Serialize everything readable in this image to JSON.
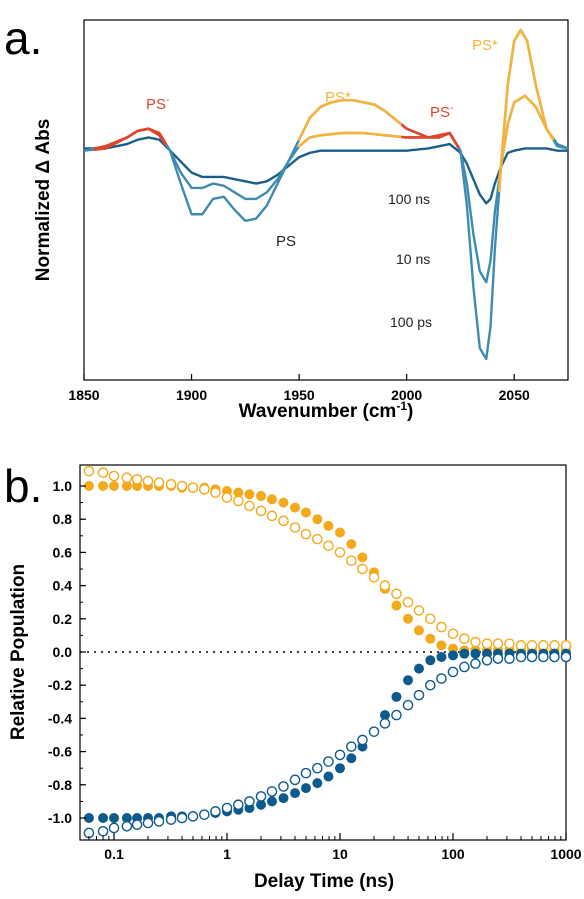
{
  "colors": {
    "ps": "#3f8bb0",
    "ps_dark": "#1a5f8a",
    "ps_star": "#f3b43c",
    "ps_minus": "#e0452c",
    "blue_marker": "#0d5a8c",
    "orange_marker": "#f4a91d"
  },
  "chart_data": [
    {
      "panel": "a.",
      "type": "line",
      "title": "",
      "xlabel_main": "Wavenumber (cm",
      "xlabel_sup": "-1",
      "xlabel_end": ")",
      "ylabel": "Normalized Δ Abs",
      "xlim": [
        1850,
        2075
      ],
      "ylim": [
        -1.0,
        0.55
      ],
      "xticks": [
        1850,
        1900,
        1950,
        2000,
        2050
      ],
      "delay_labels": [
        "100 ns",
        "10 ns",
        "100 ps"
      ],
      "species_labels": {
        "ps": "PS",
        "ps_minus_base": "PS",
        "ps_minus_sup": "-",
        "ps_star": "PS*"
      },
      "series": [
        {
          "name": "100 ns",
          "x": [
            1850,
            1860,
            1870,
            1875,
            1880,
            1885,
            1890,
            1895,
            1900,
            1905,
            1910,
            1915,
            1920,
            1925,
            1930,
            1935,
            1940,
            1945,
            1950,
            1955,
            1960,
            1970,
            1980,
            1990,
            2000,
            2010,
            2015,
            2020,
            2025,
            2028,
            2031,
            2034,
            2037,
            2039,
            2041,
            2044,
            2047,
            2050,
            2055,
            2060,
            2065,
            2070,
            2075
          ],
          "y": [
            0.01,
            0.01,
            0.03,
            0.05,
            0.06,
            0.05,
            0.0,
            -0.05,
            -0.1,
            -0.12,
            -0.12,
            -0.12,
            -0.13,
            -0.14,
            -0.15,
            -0.14,
            -0.11,
            -0.07,
            -0.03,
            -0.01,
            0.0,
            0.0,
            0.0,
            0.0,
            0.0,
            0.01,
            0.02,
            0.03,
            -0.01,
            -0.06,
            -0.13,
            -0.2,
            -0.24,
            -0.22,
            -0.15,
            -0.07,
            -0.01,
            0.0,
            0.01,
            0.01,
            0.01,
            0.0,
            0.0
          ]
        },
        {
          "name": "10 ns",
          "x": [
            1850,
            1860,
            1870,
            1875,
            1880,
            1885,
            1890,
            1895,
            1900,
            1905,
            1910,
            1915,
            1920,
            1925,
            1930,
            1935,
            1940,
            1945,
            1950,
            1955,
            1960,
            1970,
            1980,
            1990,
            2000,
            2010,
            2015,
            2020,
            2025,
            2028,
            2031,
            2034,
            2037,
            2039,
            2041,
            2044,
            2047,
            2050,
            2055,
            2060,
            2065,
            2070,
            2075
          ],
          "y": [
            0.0,
            0.02,
            0.06,
            0.09,
            0.1,
            0.07,
            0.0,
            -0.1,
            -0.17,
            -0.17,
            -0.15,
            -0.16,
            -0.19,
            -0.22,
            -0.22,
            -0.19,
            -0.13,
            -0.05,
            0.02,
            0.06,
            0.07,
            0.08,
            0.08,
            0.07,
            0.06,
            0.06,
            0.07,
            0.08,
            0.0,
            -0.15,
            -0.38,
            -0.55,
            -0.6,
            -0.5,
            -0.28,
            -0.06,
            0.12,
            0.22,
            0.25,
            0.2,
            0.1,
            0.03,
            0.01
          ]
        },
        {
          "name": "100 ps",
          "x": [
            1850,
            1860,
            1870,
            1875,
            1880,
            1885,
            1890,
            1895,
            1900,
            1905,
            1910,
            1915,
            1920,
            1925,
            1930,
            1935,
            1940,
            1945,
            1950,
            1955,
            1960,
            1965,
            1970,
            1975,
            1980,
            1985,
            1990,
            1995,
            2000,
            2005,
            2010,
            2015,
            2020,
            2025,
            2028,
            2031,
            2034,
            2037,
            2039,
            2041,
            2044,
            2047,
            2050,
            2053,
            2056,
            2060,
            2065,
            2070,
            2075
          ],
          "y": [
            0.0,
            0.01,
            0.06,
            0.09,
            0.1,
            0.08,
            0.0,
            -0.15,
            -0.29,
            -0.29,
            -0.22,
            -0.21,
            -0.27,
            -0.32,
            -0.31,
            -0.25,
            -0.15,
            -0.05,
            0.05,
            0.15,
            0.2,
            0.22,
            0.23,
            0.23,
            0.22,
            0.21,
            0.18,
            0.14,
            0.1,
            0.08,
            0.06,
            0.06,
            0.08,
            0.0,
            -0.25,
            -0.62,
            -0.9,
            -0.95,
            -0.8,
            -0.45,
            -0.05,
            0.3,
            0.5,
            0.55,
            0.5,
            0.3,
            0.1,
            0.02,
            0.01
          ]
        }
      ],
      "species_regions": [
        {
          "species": "PS-",
          "x_from": 1855,
          "x_to": 1888
        },
        {
          "species": "PS*",
          "x_from": 1950,
          "x_to": 1998
        },
        {
          "species": "PS-",
          "x_from": 1998,
          "x_to": 2024
        },
        {
          "species": "PS*",
          "x_from": 2043,
          "x_to": 2068
        }
      ]
    },
    {
      "panel": "b.",
      "type": "scatter",
      "title": "",
      "xlabel": "Delay Time (ns)",
      "ylabel": "Relative Population",
      "xscale": "log",
      "xlim": [
        0.05,
        1000
      ],
      "ylim": [
        -1.1,
        1.1
      ],
      "xticks": [
        0.1,
        1,
        10,
        100,
        1000
      ],
      "xtick_labels": [
        "0.1",
        "1",
        "10",
        "100",
        "1000"
      ],
      "yticks": [
        1.0,
        0.8,
        0.6,
        0.4,
        0.2,
        0.0,
        -0.2,
        -0.4,
        -0.6,
        -0.8,
        -1.0
      ],
      "ytick_labels": [
        "1.0",
        "0.8",
        "0.6",
        "0.4",
        "0.2",
        "0.0",
        "-0.2",
        "-0.4",
        "-0.6",
        "-0.8",
        "-1.0"
      ],
      "zero_line": true,
      "x": [
        0.06,
        0.08,
        0.1,
        0.13,
        0.16,
        0.2,
        0.25,
        0.32,
        0.4,
        0.5,
        0.63,
        0.79,
        1,
        1.26,
        1.58,
        2,
        2.5,
        3.16,
        4,
        5,
        6.3,
        7.9,
        10,
        12.6,
        15.8,
        20,
        25,
        31.6,
        40,
        50,
        63,
        79,
        100,
        126,
        158,
        200,
        250,
        316,
        400,
        500,
        630,
        790,
        1000
      ],
      "series": [
        {
          "name": "",
          "marker": "filled",
          "color": "orange",
          "y": [
            1.0,
            1.0,
            1.0,
            1.0,
            1.0,
            1.0,
            1.0,
            1.0,
            0.99,
            0.99,
            0.99,
            0.98,
            0.97,
            0.96,
            0.95,
            0.94,
            0.92,
            0.9,
            0.87,
            0.84,
            0.8,
            0.76,
            0.72,
            0.65,
            0.57,
            0.48,
            0.38,
            0.28,
            0.2,
            0.13,
            0.08,
            0.04,
            0.02,
            0.01,
            0.01,
            0.01,
            0.01,
            0.01,
            0.01,
            0.01,
            0.01,
            0.01,
            0.01
          ]
        },
        {
          "name": "",
          "marker": "open",
          "color": "orange",
          "y": [
            1.09,
            1.08,
            1.06,
            1.05,
            1.04,
            1.03,
            1.02,
            1.01,
            1.0,
            0.99,
            0.98,
            0.96,
            0.93,
            0.91,
            0.88,
            0.85,
            0.82,
            0.79,
            0.75,
            0.71,
            0.68,
            0.64,
            0.6,
            0.55,
            0.5,
            0.45,
            0.4,
            0.35,
            0.3,
            0.25,
            0.2,
            0.15,
            0.11,
            0.08,
            0.06,
            0.05,
            0.05,
            0.05,
            0.04,
            0.04,
            0.04,
            0.04,
            0.04
          ]
        },
        {
          "name": "",
          "marker": "filled",
          "color": "blue",
          "y": [
            -1.0,
            -1.0,
            -1.0,
            -1.0,
            -1.0,
            -1.0,
            -1.0,
            -0.99,
            -0.99,
            -0.99,
            -0.98,
            -0.97,
            -0.96,
            -0.95,
            -0.94,
            -0.92,
            -0.9,
            -0.88,
            -0.85,
            -0.82,
            -0.79,
            -0.75,
            -0.7,
            -0.64,
            -0.57,
            -0.48,
            -0.38,
            -0.27,
            -0.17,
            -0.1,
            -0.05,
            -0.03,
            -0.02,
            -0.01,
            -0.01,
            -0.01,
            -0.01,
            -0.01,
            -0.01,
            -0.01,
            -0.01,
            -0.01,
            -0.01
          ]
        },
        {
          "name": "",
          "marker": "open",
          "color": "blue",
          "y": [
            -1.09,
            -1.08,
            -1.06,
            -1.05,
            -1.04,
            -1.03,
            -1.02,
            -1.01,
            -1.0,
            -0.99,
            -0.98,
            -0.96,
            -0.94,
            -0.92,
            -0.9,
            -0.87,
            -0.84,
            -0.81,
            -0.77,
            -0.73,
            -0.7,
            -0.66,
            -0.62,
            -0.57,
            -0.53,
            -0.48,
            -0.43,
            -0.38,
            -0.32,
            -0.26,
            -0.2,
            -0.16,
            -0.12,
            -0.09,
            -0.07,
            -0.05,
            -0.04,
            -0.04,
            -0.03,
            -0.03,
            -0.03,
            -0.03,
            -0.03
          ]
        }
      ]
    }
  ]
}
